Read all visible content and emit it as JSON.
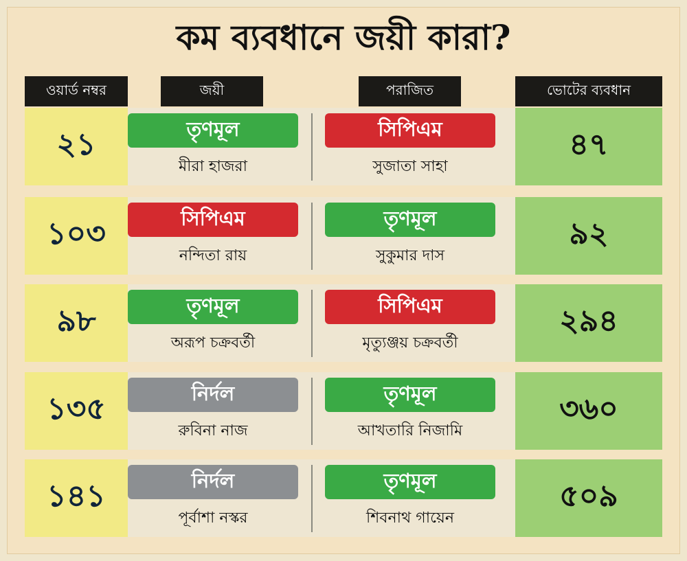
{
  "title": "কম ব্যবধানে জয়ী কারা?",
  "headers": {
    "ward": "ওয়ার্ড নম্বর",
    "winner": "জয়ী",
    "loser": "পরাজিত",
    "margin": "ভোটের ব্যবধান"
  },
  "colors": {
    "tmc": "#3aaa45",
    "cpim": "#d42a2f",
    "independent": "#8c8f92",
    "ward_bg": "#f2ea86",
    "margin_bg": "#9ccf74",
    "header_bg": "#1b1a17"
  },
  "rows": [
    {
      "ward": "২১",
      "winner_party": "তৃণমূল",
      "winner_party_key": "tmc",
      "winner_name": "মীরা হাজরা",
      "loser_party": "সিপিএম",
      "loser_party_key": "cpim",
      "loser_name": "সুজাতা সাহা",
      "margin": "৪৭"
    },
    {
      "ward": "১০৩",
      "winner_party": "সিপিএম",
      "winner_party_key": "cpim",
      "winner_name": "নন্দিতা রায়",
      "loser_party": "তৃণমূল",
      "loser_party_key": "tmc",
      "loser_name": "সুকুমার দাস",
      "margin": "৯২"
    },
    {
      "ward": "৯৮",
      "winner_party": "তৃণমূল",
      "winner_party_key": "tmc",
      "winner_name": "অরূপ চক্রবর্তী",
      "loser_party": "সিপিএম",
      "loser_party_key": "cpim",
      "loser_name": "মৃত্যুঞ্জয় চক্রবর্তী",
      "margin": "২৯৪"
    },
    {
      "ward": "১৩৫",
      "winner_party": "নির্দল",
      "winner_party_key": "ind",
      "winner_name": "রুবিনা নাজ",
      "loser_party": "তৃণমূল",
      "loser_party_key": "tmc",
      "loser_name": "আখতারি নিজামি",
      "margin": "৩৬০"
    },
    {
      "ward": "১৪১",
      "winner_party": "নির্দল",
      "winner_party_key": "ind",
      "winner_name": "পূর্বাশা নস্কর",
      "loser_party": "তৃণমূল",
      "loser_party_key": "tmc",
      "loser_name": "শিবনাথ গায়েন",
      "margin": "৫০৯"
    }
  ]
}
